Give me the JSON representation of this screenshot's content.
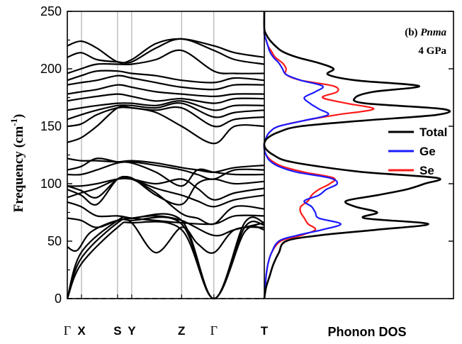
{
  "chart_data": [
    {
      "type": "line",
      "panel": "band-structure",
      "ylabel_main": "Frequency (cm",
      "ylabel_sup": "-1",
      "ylabel_close": ")",
      "ylim": [
        0,
        250
      ],
      "yticks": [
        0,
        50,
        100,
        150,
        200,
        250
      ],
      "kpoints": [
        {
          "label": "Γ",
          "pos": 0.0
        },
        {
          "label": "X",
          "pos": 0.072
        },
        {
          "label": "S",
          "pos": 0.255
        },
        {
          "label": "Y",
          "pos": 0.327
        },
        {
          "label": "Z",
          "pos": 0.58
        },
        {
          "label": "Γ",
          "pos": 0.744
        },
        {
          "label": "T",
          "pos": 1.0
        }
      ],
      "zero_line": "dashed",
      "branches": [
        {
          "x": [
            0,
            0.07,
            0.255,
            0.327,
            0.58,
            0.744,
            0.9,
            1
          ],
          "y": [
            0,
            30,
            62,
            66,
            60,
            0,
            58,
            60
          ]
        },
        {
          "x": [
            0,
            0.07,
            0.255,
            0.327,
            0.58,
            0.744,
            0.9,
            1
          ],
          "y": [
            0,
            35,
            66,
            68,
            65,
            0,
            62,
            64
          ]
        },
        {
          "x": [
            0,
            0.07,
            0.255,
            0.327,
            0.58,
            0.744,
            0.9,
            1
          ],
          "y": [
            0,
            40,
            68,
            70,
            68,
            0,
            66,
            66
          ]
        },
        {
          "x": [
            0,
            0.05,
            0.12,
            0.255,
            0.327,
            0.45,
            0.58,
            0.66,
            0.744,
            0.85,
            1
          ],
          "y": [
            45,
            42,
            58,
            68,
            66,
            40,
            62,
            48,
            40,
            60,
            62
          ]
        },
        {
          "x": [
            0,
            0.07,
            0.15,
            0.255,
            0.327,
            0.45,
            0.58,
            0.744,
            0.85,
            1
          ],
          "y": [
            70,
            68,
            62,
            68,
            70,
            72,
            68,
            55,
            60,
            66
          ]
        },
        {
          "x": [
            0,
            0.07,
            0.15,
            0.255,
            0.327,
            0.45,
            0.58,
            0.744,
            0.85,
            1
          ],
          "y": [
            84,
            80,
            72,
            72,
            70,
            68,
            66,
            65,
            72,
            72
          ]
        },
        {
          "x": [
            0,
            0.07,
            0.15,
            0.255,
            0.327,
            0.45,
            0.58,
            0.66,
            0.744,
            0.85,
            1
          ],
          "y": [
            95,
            90,
            82,
            104,
            104,
            92,
            74,
            70,
            65,
            80,
            78
          ]
        },
        {
          "x": [
            0,
            0.07,
            0.15,
            0.255,
            0.327,
            0.45,
            0.58,
            0.66,
            0.744,
            0.85,
            1
          ],
          "y": [
            98,
            94,
            88,
            104,
            104,
            96,
            90,
            85,
            80,
            86,
            90
          ]
        },
        {
          "x": [
            0,
            0.07,
            0.15,
            0.255,
            0.327,
            0.45,
            0.58,
            0.66,
            0.744,
            0.85,
            1
          ],
          "y": [
            98,
            98,
            100,
            104,
            104,
            100,
            104,
            96,
            86,
            92,
            96
          ]
        },
        {
          "x": [
            0,
            0.07,
            0.15,
            0.255,
            0.327,
            0.45,
            0.58,
            0.66,
            0.744,
            0.85,
            1
          ],
          "y": [
            88,
            92,
            96,
            104,
            105,
            90,
            82,
            100,
            104,
            100,
            102
          ]
        },
        {
          "x": [
            0,
            0.07,
            0.15,
            0.255,
            0.327,
            0.45,
            0.58,
            0.66,
            0.744,
            0.85,
            1
          ],
          "y": [
            108,
            108,
            112,
            118,
            118,
            110,
            98,
            112,
            110,
            108,
            108
          ]
        },
        {
          "x": [
            0,
            0.07,
            0.15,
            0.255,
            0.327,
            0.45,
            0.58,
            0.66,
            0.744,
            0.85,
            1
          ],
          "y": [
            112,
            115,
            122,
            119,
            119,
            116,
            112,
            108,
            104,
            112,
            112
          ]
        },
        {
          "x": [
            0,
            0.07,
            0.15,
            0.255,
            0.327,
            0.45,
            0.58,
            0.66,
            0.744,
            0.85,
            1
          ],
          "y": [
            122,
            120,
            120,
            119,
            120,
            118,
            114,
            112,
            110,
            114,
            116
          ]
        },
        {
          "x": [
            0,
            0.07,
            0.15,
            0.255,
            0.327,
            0.45,
            0.58,
            0.744,
            0.85,
            1
          ],
          "y": [
            136,
            140,
            150,
            166,
            166,
            162,
            150,
            135,
            150,
            150
          ]
        },
        {
          "x": [
            0,
            0.07,
            0.15,
            0.255,
            0.327,
            0.45,
            0.58,
            0.744,
            0.85,
            1
          ],
          "y": [
            150,
            152,
            160,
            166,
            166,
            164,
            166,
            150,
            156,
            158
          ]
        },
        {
          "x": [
            0,
            0.07,
            0.15,
            0.255,
            0.327,
            0.45,
            0.58,
            0.744,
            0.85,
            1
          ],
          "y": [
            156,
            160,
            164,
            168,
            168,
            166,
            170,
            158,
            162,
            164
          ]
        },
        {
          "x": [
            0,
            0.07,
            0.15,
            0.255,
            0.327,
            0.45,
            0.58,
            0.744,
            0.85,
            1
          ],
          "y": [
            164,
            166,
            168,
            170,
            170,
            168,
            172,
            164,
            168,
            168
          ]
        },
        {
          "x": [
            0,
            0.07,
            0.15,
            0.255,
            0.327,
            0.45,
            0.58,
            0.744,
            0.85,
            1
          ],
          "y": [
            172,
            174,
            176,
            178,
            176,
            172,
            174,
            170,
            174,
            174
          ]
        },
        {
          "x": [
            0,
            0.07,
            0.15,
            0.255,
            0.327,
            0.45,
            0.58,
            0.744,
            0.85,
            1
          ],
          "y": [
            178,
            180,
            182,
            186,
            184,
            180,
            178,
            176,
            178,
            178
          ]
        },
        {
          "x": [
            0,
            0.07,
            0.15,
            0.255,
            0.327,
            0.45,
            0.58,
            0.744,
            0.85,
            1
          ],
          "y": [
            186,
            188,
            190,
            194,
            192,
            188,
            184,
            182,
            186,
            186
          ]
        },
        {
          "x": [
            0,
            0.07,
            0.15,
            0.255,
            0.327,
            0.45,
            0.58,
            0.744,
            0.85,
            1
          ],
          "y": [
            190,
            194,
            198,
            198,
            196,
            194,
            190,
            188,
            192,
            190
          ]
        },
        {
          "x": [
            0,
            0.07,
            0.15,
            0.255,
            0.327,
            0.45,
            0.58,
            0.744,
            0.85,
            1
          ],
          "y": [
            196,
            200,
            204,
            204,
            204,
            208,
            216,
            198,
            196,
            196
          ]
        },
        {
          "x": [
            0,
            0.07,
            0.15,
            0.255,
            0.327,
            0.45,
            0.58,
            0.744,
            0.85,
            1
          ],
          "y": [
            210,
            214,
            208,
            206,
            206,
            218,
            226,
            216,
            208,
            204
          ]
        },
        {
          "x": [
            0,
            0.07,
            0.15,
            0.255,
            0.327,
            0.45,
            0.58,
            0.744,
            0.85,
            1
          ],
          "y": [
            220,
            224,
            218,
            206,
            208,
            222,
            226,
            220,
            214,
            210
          ]
        }
      ]
    },
    {
      "type": "line",
      "panel": "phonon-dos",
      "xlabel": "Phonon DOS",
      "title_prefix": "(b) ",
      "title_italic": "Pnma",
      "subtitle": "4 GPa",
      "legend_placement": "right",
      "ylim": [
        0,
        250
      ],
      "series": [
        {
          "name": "Total",
          "color": "#000000",
          "y": [
            0,
            10,
            20,
            30,
            40,
            50,
            55,
            60,
            65,
            70,
            75,
            80,
            85,
            90,
            95,
            100,
            105,
            110,
            115,
            120,
            125,
            130,
            135,
            140,
            145,
            150,
            155,
            160,
            165,
            170,
            175,
            180,
            185,
            190,
            195,
            200,
            205,
            210,
            215,
            220,
            225,
            230,
            235,
            250
          ],
          "x": [
            0,
            0.01,
            0.03,
            0.05,
            0.08,
            0.12,
            0.3,
            0.62,
            0.9,
            0.55,
            0.62,
            0.5,
            0.45,
            0.62,
            0.78,
            0.88,
            0.95,
            0.55,
            0.3,
            0.12,
            0.05,
            0.01,
            0.0,
            0.02,
            0.08,
            0.2,
            0.55,
            0.95,
            0.98,
            0.55,
            0.5,
            0.6,
            0.85,
            0.5,
            0.35,
            0.38,
            0.3,
            0.18,
            0.1,
            0.06,
            0.03,
            0.01,
            0.0,
            0.0
          ]
        },
        {
          "name": "Ge",
          "color": "#1a1aff",
          "y": [
            0,
            10,
            20,
            30,
            40,
            50,
            55,
            60,
            65,
            70,
            75,
            80,
            85,
            90,
            95,
            100,
            105,
            110,
            115,
            120,
            125,
            130,
            135,
            140,
            145,
            150,
            155,
            160,
            165,
            170,
            175,
            180,
            185,
            190,
            195,
            200,
            205,
            210,
            215,
            220,
            225,
            230,
            235,
            250
          ],
          "x": [
            0,
            0.005,
            0.01,
            0.02,
            0.04,
            0.08,
            0.18,
            0.32,
            0.42,
            0.3,
            0.28,
            0.26,
            0.22,
            0.3,
            0.34,
            0.4,
            0.36,
            0.18,
            0.08,
            0.03,
            0.01,
            0.0,
            0.0,
            0.01,
            0.03,
            0.08,
            0.22,
            0.35,
            0.3,
            0.25,
            0.22,
            0.28,
            0.32,
            0.2,
            0.12,
            0.1,
            0.08,
            0.05,
            0.03,
            0.02,
            0.01,
            0.0,
            0.0,
            0.0
          ]
        },
        {
          "name": "Se",
          "color": "#ff1a1a",
          "y": [
            0,
            10,
            20,
            30,
            40,
            50,
            55,
            60,
            65,
            70,
            75,
            80,
            85,
            90,
            95,
            100,
            105,
            110,
            115,
            120,
            125,
            130,
            135,
            140,
            145,
            150,
            155,
            160,
            165,
            170,
            175,
            180,
            185,
            190,
            195,
            200,
            205,
            210,
            215,
            220,
            225,
            230,
            235,
            250
          ],
          "x": [
            0,
            0.005,
            0.01,
            0.02,
            0.04,
            0.09,
            0.2,
            0.28,
            0.24,
            0.22,
            0.2,
            0.2,
            0.24,
            0.26,
            0.3,
            0.36,
            0.38,
            0.22,
            0.1,
            0.04,
            0.01,
            0.0,
            0.0,
            0.01,
            0.03,
            0.08,
            0.22,
            0.4,
            0.6,
            0.45,
            0.32,
            0.4,
            0.38,
            0.2,
            0.12,
            0.12,
            0.1,
            0.06,
            0.04,
            0.02,
            0.01,
            0.0,
            0.0,
            0.0
          ]
        }
      ]
    }
  ]
}
